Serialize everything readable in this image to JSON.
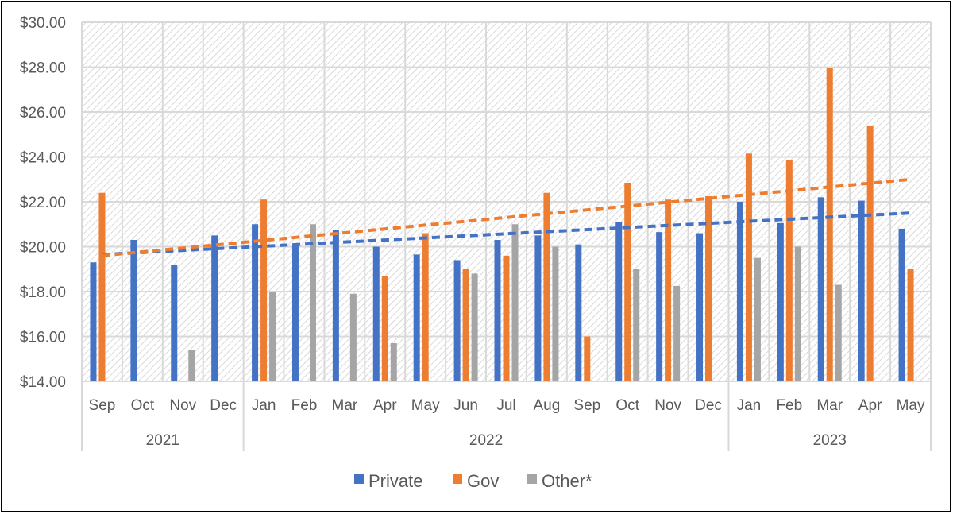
{
  "chart_data": {
    "type": "bar",
    "title": "",
    "xlabel": "",
    "ylabel": "",
    "ylim": [
      14,
      30
    ],
    "ytick_step": 2,
    "ytick_format": "$0.00",
    "grid": true,
    "background": "diagonal hatch",
    "legend_position": "bottom",
    "categories": [
      "Sep",
      "Oct",
      "Nov",
      "Dec",
      "Jan",
      "Feb",
      "Mar",
      "Apr",
      "May",
      "Jun",
      "Jul",
      "Aug",
      "Sep",
      "Oct",
      "Nov",
      "Dec",
      "Jan",
      "Feb",
      "Mar",
      "Apr",
      "May"
    ],
    "year_groups": [
      {
        "label": "2021",
        "count": 4
      },
      {
        "label": "2022",
        "count": 12
      },
      {
        "label": "2023",
        "count": 5
      }
    ],
    "series": [
      {
        "name": "Private",
        "color": "#4472C4",
        "values": [
          19.3,
          20.3,
          19.2,
          20.5,
          21.0,
          20.05,
          20.75,
          20.0,
          19.65,
          19.4,
          20.3,
          20.5,
          20.1,
          21.1,
          20.65,
          20.6,
          22.0,
          21.05,
          22.2,
          22.05,
          20.8
        ],
        "trendline": {
          "style": "dashed linear",
          "start": 19.65,
          "end": 21.5
        }
      },
      {
        "name": "Gov",
        "color": "#ED7D31",
        "values": [
          22.4,
          null,
          null,
          null,
          22.1,
          null,
          null,
          18.7,
          20.6,
          19.0,
          19.6,
          22.4,
          16.0,
          22.85,
          22.1,
          22.25,
          24.15,
          23.85,
          27.95,
          25.4,
          19.0
        ],
        "trendline": {
          "style": "dashed linear",
          "start": 19.6,
          "end": 23.0
        }
      },
      {
        "name": "Other*",
        "color": "#A5A5A5",
        "values": [
          null,
          null,
          15.4,
          null,
          18.0,
          21.0,
          17.9,
          15.7,
          null,
          18.8,
          21.0,
          20.0,
          null,
          19.0,
          18.25,
          null,
          19.5,
          20.0,
          18.3,
          null,
          null
        ]
      }
    ]
  }
}
